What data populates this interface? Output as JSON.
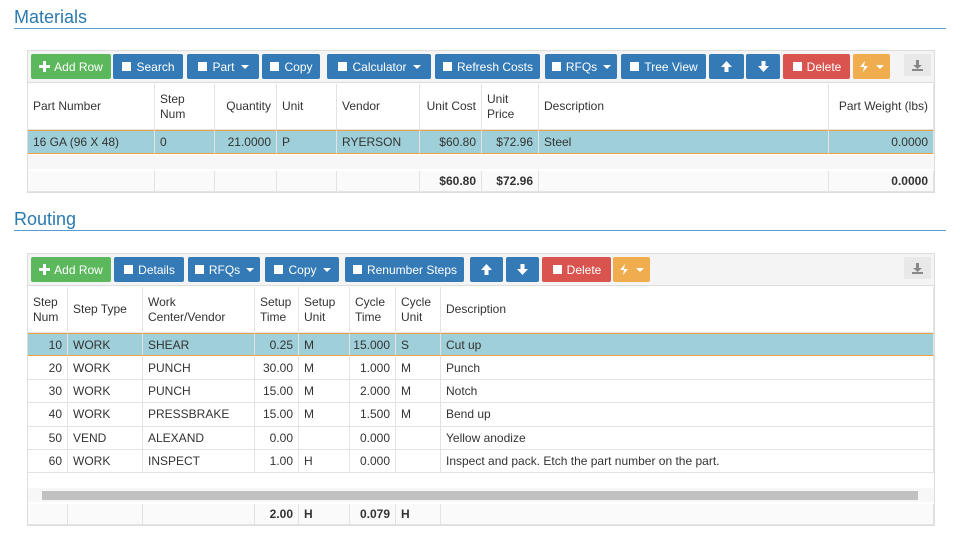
{
  "materials": {
    "title": "Materials",
    "toolbar": [
      "Add Row",
      "Search",
      "Part",
      "Copy",
      "Calculator",
      "Refresh Costs",
      "RFQs",
      "Tree View",
      "Delete"
    ],
    "columns": [
      "Part Number",
      "Step Num",
      "Quantity",
      "Unit",
      "Vendor",
      "Unit Cost",
      "Unit Price",
      "Description",
      "Part Weight (lbs)"
    ],
    "rows": [
      [
        "16 GA (96 X 48)",
        "0",
        "21.0000",
        "P",
        "RYERSON",
        "$60.80",
        "$72.96",
        "Steel",
        "0.0000"
      ]
    ],
    "totals": [
      null,
      null,
      null,
      null,
      null,
      "$60.80",
      "$72.96",
      null,
      "0.0000"
    ]
  },
  "routing": {
    "title": "Routing",
    "toolbar": [
      "Add Row",
      "Details",
      "RFQs",
      "Copy",
      "Renumber Steps",
      "Delete"
    ],
    "columns": [
      "Step Num",
      "Step Type",
      "Work Center/Vendor",
      "Setup Time",
      "Setup Unit",
      "Cycle Time",
      "Cycle Unit",
      "Description"
    ],
    "rows": [
      [
        "10",
        "WORK",
        "SHEAR",
        "0.25",
        "M",
        "15.000",
        "S",
        "Cut up"
      ],
      [
        "20",
        "WORK",
        "PUNCH",
        "30.00",
        "M",
        "1.000",
        "M",
        "Punch"
      ],
      [
        "30",
        "WORK",
        "PUNCH",
        "15.00",
        "M",
        "2.000",
        "M",
        "Notch"
      ],
      [
        "40",
        "WORK",
        "PRESSBRAKE",
        "15.00",
        "M",
        "1.500",
        "M",
        "Bend up"
      ],
      [
        "50",
        "VEND",
        "ALEXAND",
        "0.00",
        null,
        "0.000",
        null,
        "Yellow anodize"
      ],
      [
        "60",
        "WORK",
        "INSPECT",
        "1.00",
        "H",
        "0.000",
        null,
        "Inspect and pack. Etch the part number on the part."
      ]
    ],
    "totals": [
      null,
      null,
      null,
      "2.00",
      "H",
      "0.079",
      "H",
      null
    ]
  }
}
